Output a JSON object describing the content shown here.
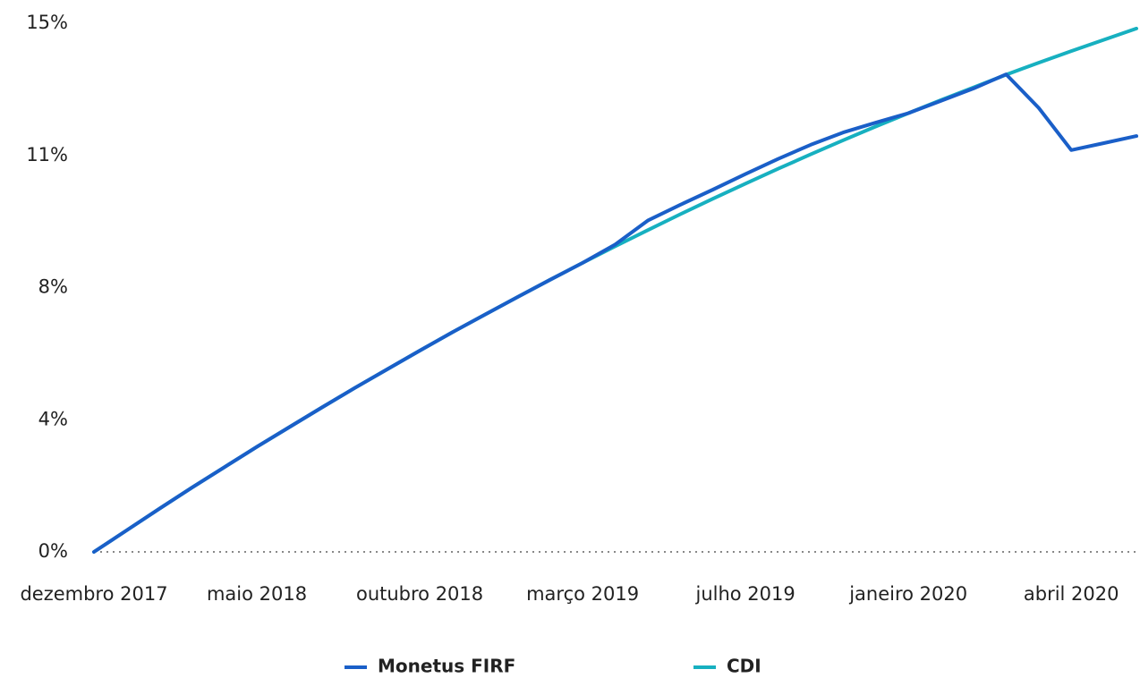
{
  "chart_data": {
    "type": "line",
    "categories": [
      "dezembro 2017",
      null,
      null,
      null,
      null,
      "maio 2018",
      null,
      null,
      null,
      null,
      "outubro 2018",
      null,
      null,
      null,
      null,
      "março 2019",
      null,
      null,
      null,
      null,
      "julho 2019",
      null,
      null,
      null,
      null,
      "janeiro 2020",
      null,
      null,
      null,
      null,
      "abril 2020",
      null,
      null
    ],
    "series": [
      {
        "name": "Monetus FIRF",
        "color": "#1a5fc8",
        "values": [
          0,
          0.61,
          1.22,
          1.82,
          2.4,
          2.98,
          3.54,
          4.1,
          4.65,
          5.18,
          5.71,
          6.23,
          6.73,
          7.23,
          7.72,
          8.2,
          8.72,
          9.4,
          9.85,
          10.28,
          10.72,
          11.15,
          11.55,
          11.9,
          12.18,
          12.45,
          12.8,
          13.15,
          13.55,
          12.6,
          11.4,
          11.6,
          11.8
        ]
      },
      {
        "name": "CDI",
        "color": "#17b0c0",
        "values": [
          0,
          0.61,
          1.22,
          1.82,
          2.4,
          2.98,
          3.54,
          4.1,
          4.65,
          5.18,
          5.71,
          6.23,
          6.73,
          7.23,
          7.72,
          8.2,
          8.67,
          9.13,
          9.58,
          10.02,
          10.45,
          10.87,
          11.28,
          11.68,
          12.07,
          12.45,
          12.82,
          13.18,
          13.54,
          13.88,
          14.21,
          14.53,
          14.85
        ]
      }
    ],
    "ylim": [
      0,
      15
    ],
    "yticks": [
      {
        "value": 0,
        "label": "0%"
      },
      {
        "value": 3.75,
        "label": "4%"
      },
      {
        "value": 7.5,
        "label": "8%"
      },
      {
        "value": 11.25,
        "label": "11%"
      },
      {
        "value": 15,
        "label": "15%"
      }
    ],
    "grid": false,
    "legend": "bottom"
  }
}
